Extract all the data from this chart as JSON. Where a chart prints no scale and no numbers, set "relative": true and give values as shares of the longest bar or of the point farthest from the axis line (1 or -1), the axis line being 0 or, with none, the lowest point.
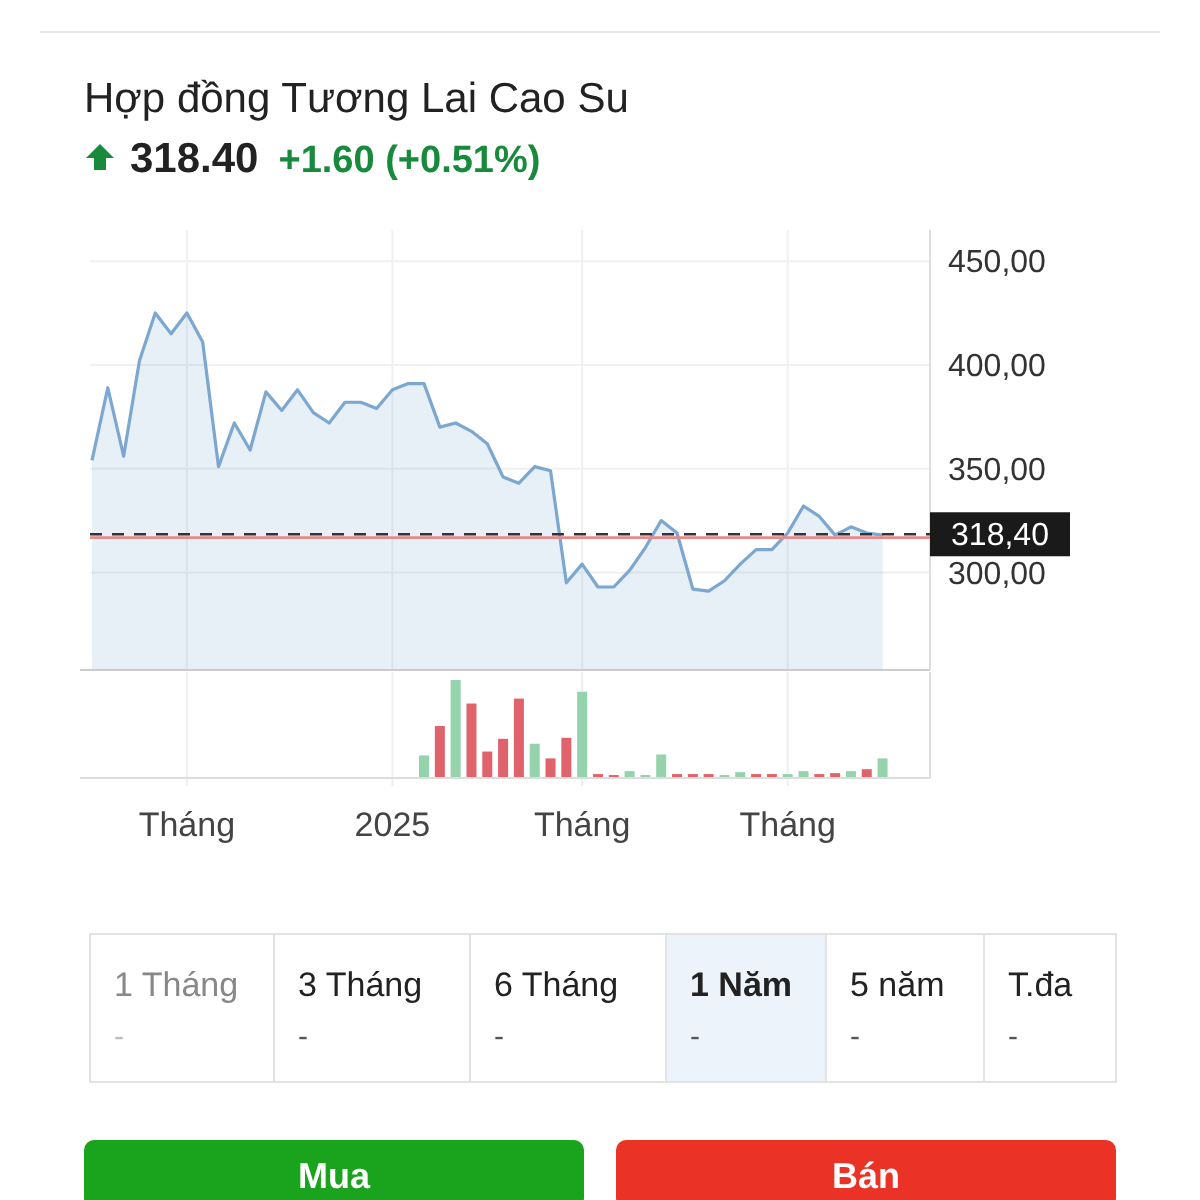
{
  "chart_data": [
    {
      "type": "area",
      "title": "Hợp đồng Tương Lai Cao Su",
      "subtitle": "318.40 +1.60 (+0.51%)",
      "categories": [
        null,
        null,
        null,
        null,
        null,
        null,
        "Tháng",
        null,
        null,
        null,
        null,
        null,
        null,
        null,
        null,
        null,
        null,
        null,
        null,
        "2025",
        null,
        null,
        null,
        null,
        null,
        null,
        null,
        null,
        null,
        null,
        null,
        "Tháng",
        null,
        null,
        null,
        null,
        null,
        null,
        null,
        null,
        null,
        null,
        null,
        null,
        "Tháng",
        null,
        null,
        null,
        null,
        null,
        null,
        null,
        null,
        null
      ],
      "series": [
        {
          "color": "#7ba7d0",
          "values": [
            354,
            389,
            356,
            402,
            425,
            415,
            425,
            411,
            351,
            372,
            359,
            387,
            378,
            388,
            377,
            372,
            382,
            382,
            379,
            388,
            391,
            391,
            370,
            372,
            368,
            362,
            346,
            343,
            351,
            349,
            295,
            304,
            293,
            293,
            301,
            312,
            325,
            319,
            292,
            291,
            296,
            304,
            311,
            311,
            319,
            332,
            327,
            318,
            322,
            319,
            318,
            null,
            null,
            null
          ]
        }
      ],
      "ylim": [
        253,
        465
      ],
      "yticks": [
        {
          "value": 300,
          "label": "300,00"
        },
        {
          "value": 350,
          "label": "350,00"
        },
        {
          "value": 400,
          "label": "400,00"
        },
        {
          "value": 450,
          "label": "450,00"
        }
      ],
      "ref_lines": [
        {
          "axis": "y",
          "value": 318.4,
          "label": "318,40",
          "color": "#333333",
          "line_style": "dashed"
        },
        {
          "axis": "y",
          "value": 316.8,
          "color": "#e88a8a",
          "line_style": "solid"
        }
      ],
      "grid": true
    },
    {
      "type": "bar",
      "relative": true,
      "categories": [
        null,
        null,
        null,
        null,
        null,
        null,
        null,
        null,
        null,
        null,
        null,
        null,
        null,
        null,
        null,
        null,
        null,
        null,
        null,
        null,
        null,
        null,
        null,
        null,
        null,
        null,
        null,
        null,
        null,
        null,
        null,
        null,
        null,
        null,
        null,
        null,
        null,
        null,
        null,
        null,
        null,
        null,
        null,
        null,
        null,
        null,
        null,
        null,
        null,
        null,
        null,
        null,
        null,
        null
      ],
      "values": [
        null,
        null,
        null,
        null,
        null,
        null,
        null,
        null,
        null,
        null,
        null,
        null,
        null,
        null,
        null,
        null,
        null,
        null,
        null,
        null,
        null,
        0.23,
        0.53,
        1,
        0.76,
        0.27,
        0.4,
        0.81,
        0.35,
        0.2,
        0.41,
        0.88,
        0.04,
        0.03,
        0.07,
        0.03,
        0.24,
        0.04,
        0.04,
        0.04,
        0.03,
        0.06,
        0.04,
        0.04,
        0.04,
        0.07,
        0.04,
        0.05,
        0.07,
        0.09,
        0.2,
        null,
        null,
        null
      ],
      "colors": [
        null,
        null,
        null,
        null,
        null,
        null,
        null,
        null,
        null,
        null,
        null,
        null,
        null,
        null,
        null,
        null,
        null,
        null,
        null,
        null,
        null,
        "#94d3ac",
        "#e0636c",
        "#94d3ac",
        "#e0636c",
        "#e0636c",
        "#e0636c",
        "#e0636c",
        "#94d3ac",
        "#e0636c",
        "#e0636c",
        "#94d3ac",
        "#e0636c",
        "#e0636c",
        "#94d3ac",
        "#94d3ac",
        "#94d3ac",
        "#e0636c",
        "#e0636c",
        "#e0636c",
        "#94d3ac",
        "#94d3ac",
        "#e0636c",
        "#e0636c",
        "#94d3ac",
        "#94d3ac",
        "#e0636c",
        "#e0636c",
        "#94d3ac",
        "#e0636c",
        "#94d3ac",
        null,
        null,
        null
      ],
      "grid": "x"
    },
    {
      "type": "other",
      "annotations": [
        "1 Tháng",
        "3 Tháng",
        "6 Tháng",
        "1 Năm",
        "5 năm",
        "T.đa",
        "-",
        "-",
        "-",
        "-",
        "-",
        "-",
        "Mua",
        "Bán"
      ]
    }
  ]
}
